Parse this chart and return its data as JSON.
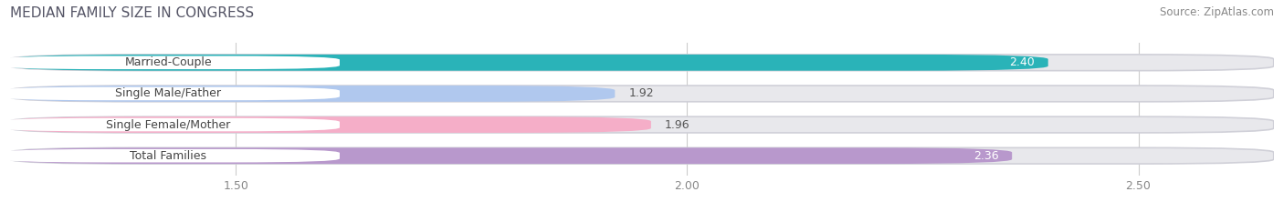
{
  "title": "MEDIAN FAMILY SIZE IN CONGRESS",
  "source": "Source: ZipAtlas.com",
  "categories": [
    "Married-Couple",
    "Single Male/Father",
    "Single Female/Mother",
    "Total Families"
  ],
  "values": [
    2.4,
    1.92,
    1.96,
    2.36
  ],
  "bar_colors": [
    "#2ab3b8",
    "#b0c8ee",
    "#f5aec8",
    "#b898cc"
  ],
  "value_inside_color": [
    "#ffffff",
    "#666666",
    "#666666",
    "#ffffff"
  ],
  "xmin": 1.25,
  "xmax": 2.65,
  "xticks": [
    1.5,
    2.0,
    2.5
  ],
  "background_color": "#ffffff",
  "bar_bg_color": "#e8e8ec",
  "title_fontsize": 11,
  "label_fontsize": 9,
  "value_fontsize": 9,
  "source_fontsize": 8.5,
  "inside_threshold": 2.2
}
